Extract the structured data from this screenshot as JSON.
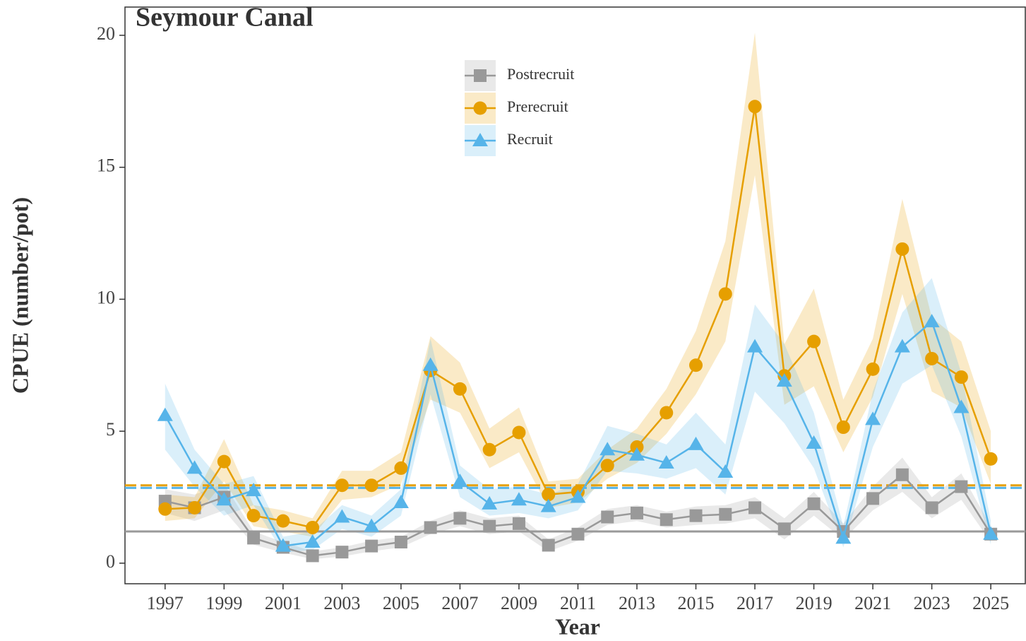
{
  "chart_data": {
    "type": "line",
    "title": "Seymour Canal",
    "x_label": "Year",
    "y_label": "CPUE (number/pot)",
    "x": [
      1997,
      1998,
      1999,
      2000,
      2001,
      2002,
      2003,
      2004,
      2005,
      2006,
      2007,
      2008,
      2009,
      2010,
      2011,
      2012,
      2013,
      2014,
      2015,
      2016,
      2017,
      2018,
      2019,
      2020,
      2021,
      2022,
      2023,
      2024,
      2025
    ],
    "series": [
      {
        "name": "Postrecruit",
        "color": "#999999",
        "marker": "square",
        "values": [
          2.35,
          2.1,
          2.5,
          0.95,
          0.6,
          0.28,
          0.42,
          0.65,
          0.8,
          1.35,
          1.7,
          1.4,
          1.5,
          0.68,
          1.1,
          1.75,
          1.9,
          1.65,
          1.8,
          1.85,
          2.1,
          1.3,
          2.25,
          1.2,
          2.45,
          3.35,
          2.1,
          2.9,
          1.1
        ],
        "upper": [
          2.8,
          2.6,
          3.0,
          1.2,
          0.8,
          0.45,
          0.6,
          0.85,
          1.0,
          1.6,
          2.0,
          1.7,
          1.8,
          0.9,
          1.35,
          2.05,
          2.2,
          1.95,
          2.15,
          2.2,
          2.5,
          1.7,
          2.7,
          1.5,
          2.9,
          4.0,
          2.5,
          3.4,
          1.4
        ],
        "lower": [
          1.9,
          1.6,
          2.0,
          0.7,
          0.4,
          0.15,
          0.25,
          0.45,
          0.6,
          1.1,
          1.4,
          1.1,
          1.2,
          0.45,
          0.85,
          1.45,
          1.6,
          1.35,
          1.45,
          1.5,
          1.7,
          0.9,
          1.8,
          0.9,
          2.0,
          2.7,
          1.7,
          2.4,
          0.8
        ]
      },
      {
        "name": "Prerecruit",
        "color": "#E69F00",
        "marker": "circle",
        "values": [
          2.05,
          2.1,
          3.85,
          1.8,
          1.6,
          1.35,
          2.95,
          2.95,
          3.6,
          7.3,
          6.6,
          4.3,
          4.95,
          2.6,
          2.7,
          3.7,
          4.4,
          5.7,
          7.5,
          10.2,
          17.3,
          7.1,
          8.4,
          5.15,
          7.35,
          11.9,
          7.75,
          7.05,
          3.95
        ],
        "upper": [
          2.6,
          2.5,
          4.7,
          2.2,
          2.0,
          1.7,
          3.5,
          3.5,
          4.2,
          8.6,
          7.6,
          5.1,
          5.9,
          3.1,
          3.2,
          4.3,
          5.1,
          6.6,
          8.8,
          12.2,
          20.1,
          8.3,
          10.4,
          6.2,
          8.5,
          13.8,
          9.3,
          8.4,
          5.0
        ],
        "lower": [
          1.6,
          1.7,
          3.1,
          1.4,
          1.2,
          1.0,
          2.4,
          2.5,
          3.0,
          6.2,
          5.7,
          3.6,
          4.2,
          2.1,
          2.3,
          3.2,
          3.8,
          4.9,
          6.4,
          8.4,
          14.7,
          6.0,
          6.7,
          4.2,
          6.3,
          10.2,
          6.5,
          5.9,
          3.0
        ]
      },
      {
        "name": "Recruit",
        "color": "#56B4E9",
        "marker": "triangle",
        "values": [
          5.6,
          3.6,
          2.4,
          2.75,
          0.65,
          0.8,
          1.75,
          1.4,
          2.3,
          7.5,
          3.1,
          2.25,
          2.4,
          2.15,
          2.5,
          4.3,
          4.1,
          3.8,
          4.5,
          3.45,
          8.2,
          6.9,
          4.55,
          0.95,
          5.45,
          8.2,
          9.15,
          5.9,
          1.1
        ],
        "upper": [
          6.8,
          4.3,
          3.0,
          3.3,
          1.0,
          1.2,
          2.2,
          1.8,
          2.8,
          8.5,
          3.7,
          2.8,
          2.9,
          2.6,
          3.0,
          5.2,
          4.9,
          4.5,
          5.7,
          4.5,
          9.8,
          8.3,
          5.7,
          1.4,
          6.5,
          9.5,
          10.8,
          7.2,
          1.6
        ],
        "lower": [
          4.3,
          2.9,
          1.8,
          2.2,
          0.4,
          0.5,
          1.3,
          1.0,
          1.8,
          6.4,
          2.5,
          1.8,
          1.9,
          1.7,
          2.0,
          3.5,
          3.4,
          3.2,
          3.6,
          2.6,
          6.5,
          5.3,
          3.6,
          0.6,
          4.4,
          6.8,
          7.5,
          4.8,
          0.7
        ]
      }
    ],
    "reference_lines": [
      {
        "value": 1.2,
        "color": "#999999",
        "style": "solid"
      },
      {
        "value": 2.95,
        "color": "#E69F00",
        "style": "dashed"
      },
      {
        "value": 2.85,
        "color": "#56B4E9",
        "style": "dashed"
      }
    ],
    "xlim": [
      1995.64,
      2026.17
    ],
    "ylim": [
      -0.78,
      21.07
    ],
    "xticks": [
      1997,
      1999,
      2001,
      2003,
      2005,
      2007,
      2009,
      2011,
      2013,
      2015,
      2017,
      2019,
      2021,
      2023,
      2025
    ],
    "yticks": [
      0,
      5,
      10,
      15,
      20
    ],
    "legend": "top"
  }
}
